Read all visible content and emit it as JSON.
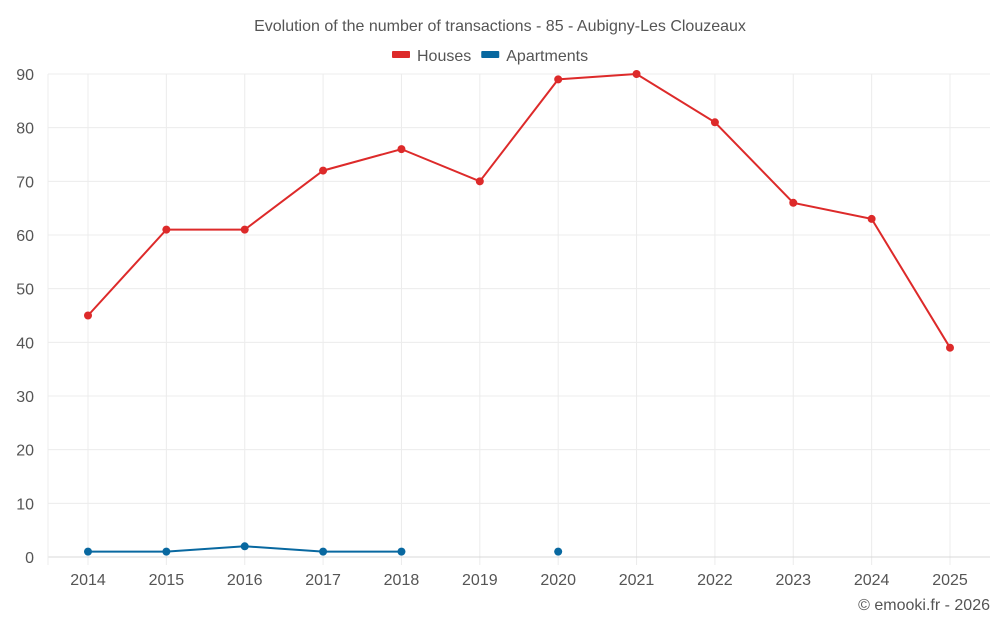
{
  "chart_data": {
    "type": "line",
    "title": "Evolution of the number of transactions - 85 - Aubigny-Les Clouzeaux",
    "categories": [
      "2014",
      "2015",
      "2016",
      "2017",
      "2018",
      "2019",
      "2020",
      "2021",
      "2022",
      "2023",
      "2024",
      "2025"
    ],
    "series": [
      {
        "name": "Houses",
        "color": "#dd2a2a",
        "values": [
          45,
          61,
          61,
          72,
          76,
          70,
          89,
          90,
          81,
          66,
          63,
          39
        ]
      },
      {
        "name": "Apartments",
        "color": "#0868a0",
        "values": [
          1,
          1,
          2,
          1,
          1,
          null,
          1,
          null,
          null,
          null,
          null,
          null
        ]
      }
    ],
    "yticks": [
      0,
      10,
      20,
      30,
      40,
      50,
      60,
      70,
      80,
      90
    ],
    "ylim": [
      0,
      90
    ],
    "xlabel": "",
    "ylabel": "",
    "grid": true,
    "legend": "top-center"
  },
  "credit": "© emooki.fr - 2026"
}
